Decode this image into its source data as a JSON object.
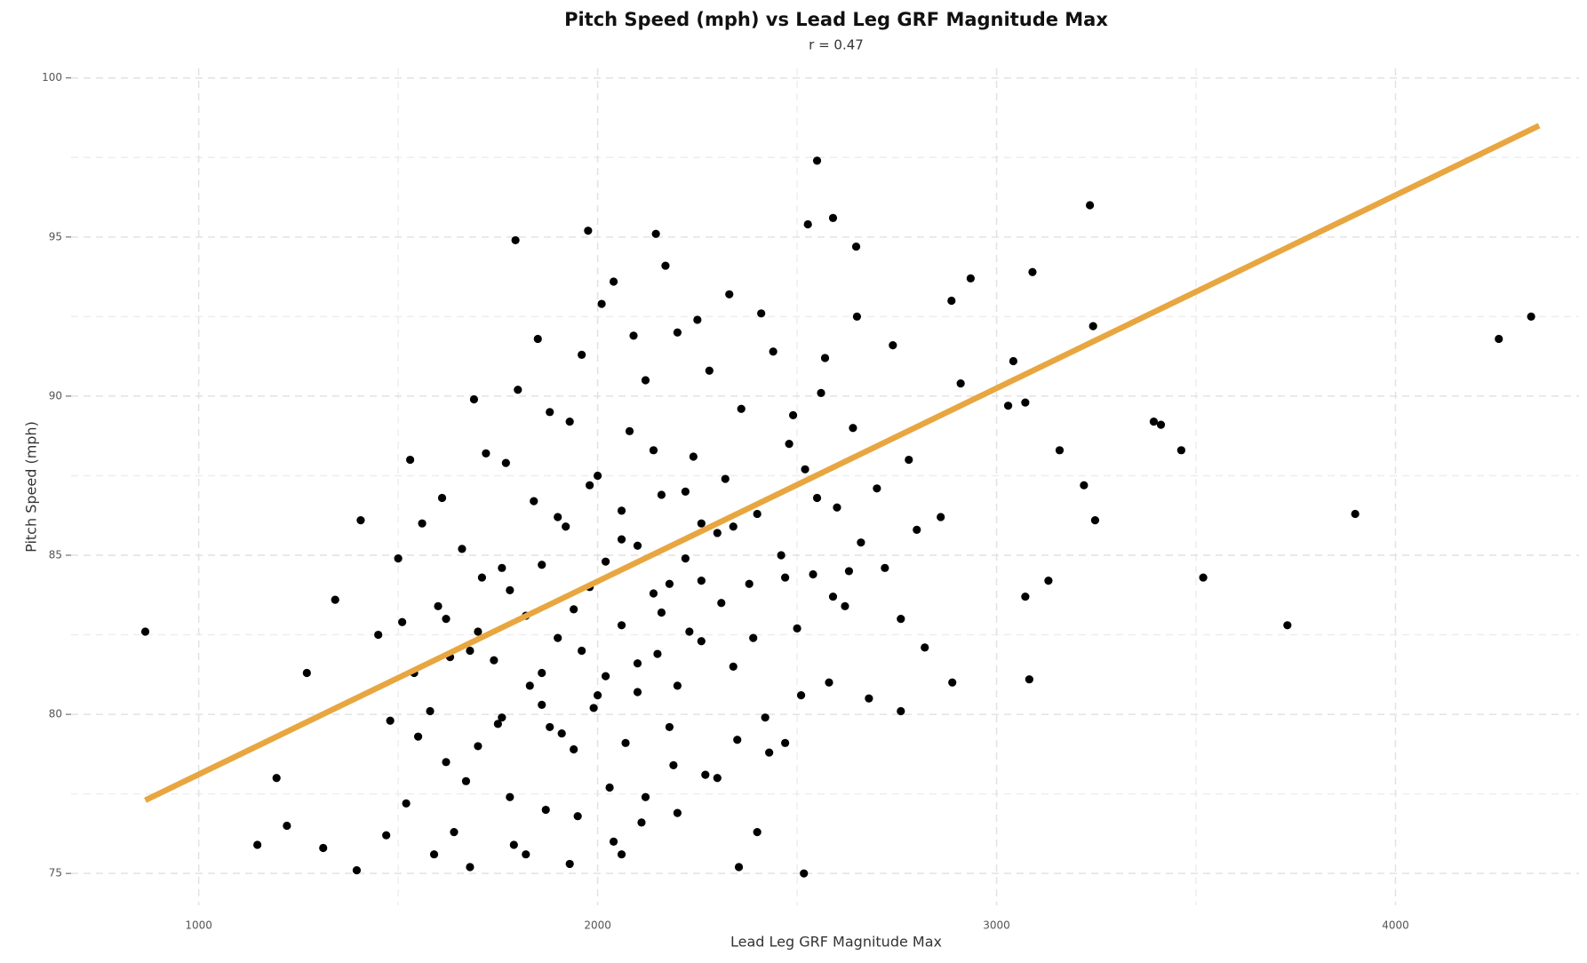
{
  "chart_data": {
    "type": "scatter",
    "title": "Pitch Speed (mph) vs Lead Leg GRF Magnitude Max",
    "subtitle": "r =  0.47",
    "x_label": "Lead Leg GRF Magnitude Max",
    "y_label": "Pitch Speed (mph)",
    "color": "#000000",
    "xlim": [
      680,
      4460
    ],
    "ylim": [
      74,
      100.3
    ],
    "xticks": [
      1000,
      2000,
      3000,
      4000
    ],
    "yticks": [
      75,
      80,
      85,
      90,
      95,
      100
    ],
    "x_minor_ticks": [
      1500,
      2500,
      3500
    ],
    "y_minor_ticks": [
      77.5,
      82.5,
      87.5,
      92.5,
      97.5
    ],
    "grid": true,
    "x": [
      866,
      1195,
      1147,
      1221,
      1271,
      1312,
      1342,
      1406,
      1396,
      2550,
      3234,
      3242,
      4259,
      4340,
      3899,
      3729,
      3518,
      3463,
      3394,
      3412,
      3158,
      3219,
      3247,
      3130,
      3072,
      3082,
      3042,
      3029,
      3072,
      3090,
      2935,
      2889,
      2760,
      2517,
      2354,
      1794,
      1976,
      2146,
      2527,
      2590,
      2648,
      2887,
      2910,
      1450,
      1480,
      1500,
      1520,
      1540,
      1560,
      1580,
      1600,
      1620,
      1640,
      1660,
      1680,
      1700,
      1720,
      1740,
      1760,
      1780,
      1800,
      1820,
      1840,
      1860,
      1880,
      1900,
      1920,
      1940,
      1960,
      1980,
      2000,
      2020,
      2040,
      2060,
      2080,
      2100,
      2120,
      2140,
      2160,
      2180,
      2200,
      2220,
      2240,
      2260,
      2280,
      2300,
      2320,
      2340,
      2360,
      2380,
      2400,
      2420,
      2440,
      2460,
      2480,
      2500,
      2520,
      2540,
      2560,
      2580,
      2600,
      2620,
      2640,
      2660,
      2680,
      2700,
      2720,
      2740,
      2760,
      2780,
      2800,
      2820,
      2860,
      1470,
      1510,
      1550,
      1590,
      1630,
      1670,
      1710,
      1750,
      1790,
      1830,
      1870,
      1910,
      1950,
      1990,
      2030,
      2070,
      2110,
      2150,
      2190,
      2230,
      2270,
      2310,
      2350,
      2390,
      2430,
      2470,
      2510,
      2550,
      2590,
      2630,
      1530,
      1610,
      1690,
      1770,
      1850,
      1930,
      2010,
      2090,
      2170,
      2250,
      2330,
      2410,
      2490,
      2570,
      2650,
      1620,
      1700,
      1780,
      1860,
      1940,
      2020,
      2100,
      2180,
      2260,
      2340,
      1900,
      1980,
      2060,
      2140,
      2220,
      1860,
      1960,
      2060,
      2160,
      2260,
      1760,
      1880,
      2000,
      2100,
      2200,
      2040,
      2120,
      1820,
      1680,
      2200,
      2300,
      1930,
      2060,
      2400,
      2470
    ],
    "values": [
      82.6,
      78.0,
      75.9,
      76.5,
      81.3,
      75.8,
      83.6,
      86.1,
      75.1,
      97.4,
      96.0,
      92.2,
      91.8,
      92.5,
      86.3,
      82.8,
      84.3,
      88.3,
      89.2,
      89.1,
      88.3,
      87.2,
      86.1,
      84.2,
      83.7,
      81.1,
      91.1,
      89.7,
      89.8,
      93.9,
      93.7,
      81.0,
      80.1,
      75.0,
      75.2,
      94.9,
      95.2,
      95.1,
      95.4,
      95.6,
      94.7,
      93.0,
      90.4,
      82.5,
      79.8,
      84.9,
      77.2,
      81.3,
      86.0,
      80.1,
      83.4,
      78.5,
      76.3,
      85.2,
      82.0,
      79.0,
      88.2,
      81.7,
      84.6,
      77.4,
      90.2,
      83.1,
      86.7,
      80.3,
      89.5,
      82.4,
      85.9,
      78.9,
      91.3,
      84.0,
      87.5,
      81.2,
      93.6,
      85.5,
      88.9,
      80.7,
      90.5,
      83.8,
      86.9,
      79.6,
      92.0,
      84.9,
      88.1,
      82.3,
      90.8,
      85.7,
      87.4,
      81.5,
      89.6,
      84.1,
      86.3,
      79.9,
      91.4,
      85.0,
      88.5,
      82.7,
      87.7,
      84.4,
      90.1,
      81.0,
      86.5,
      83.4,
      89.0,
      85.4,
      80.5,
      87.1,
      84.6,
      91.6,
      83.0,
      88.0,
      85.8,
      82.1,
      86.2,
      76.2,
      82.9,
      79.3,
      75.6,
      81.8,
      77.9,
      84.3,
      79.7,
      75.9,
      80.9,
      77.0,
      79.4,
      76.8,
      80.2,
      77.7,
      79.1,
      76.6,
      81.9,
      78.4,
      82.6,
      78.1,
      83.5,
      79.2,
      82.4,
      78.8,
      84.3,
      80.6,
      86.8,
      83.7,
      84.5,
      88.0,
      86.8,
      89.9,
      87.9,
      91.8,
      89.2,
      92.9,
      91.9,
      94.1,
      92.4,
      93.2,
      92.6,
      89.4,
      91.2,
      92.5,
      83.0,
      82.6,
      83.9,
      84.7,
      83.3,
      84.8,
      85.3,
      84.1,
      86.0,
      85.9,
      86.2,
      87.2,
      86.4,
      88.3,
      87.0,
      81.3,
      82.0,
      82.8,
      83.2,
      84.2,
      79.9,
      79.6,
      80.6,
      81.6,
      80.9,
      76.0,
      77.4,
      75.6,
      75.2,
      76.9,
      78.0,
      75.3,
      75.6,
      76.3,
      79.1
    ],
    "fit": {
      "color": "#E8A640",
      "x": [
        866,
        4360
      ],
      "y": [
        77.3,
        98.5
      ]
    }
  }
}
